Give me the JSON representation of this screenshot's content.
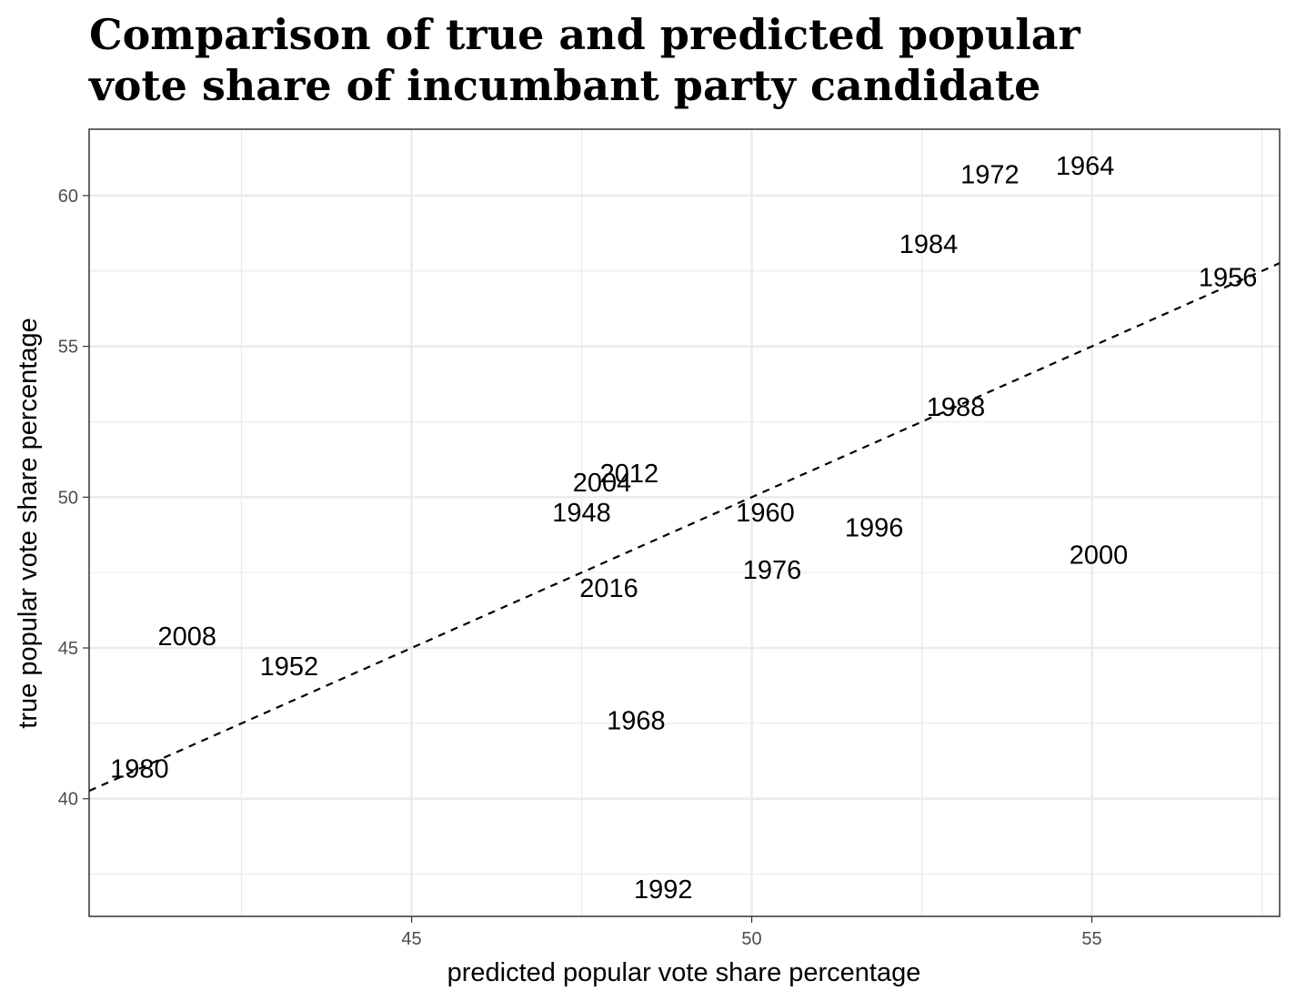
{
  "chart_data": {
    "type": "scatter",
    "title": "Comparison of true and predicted popular vote share of incumbant party candidate",
    "title_lines": [
      "Comparison of true and predicted popular",
      "vote share of incumbant party candidate"
    ],
    "xlabel": "predicted popular vote share percentage",
    "ylabel": "true popular vote share percentage",
    "xlim": [
      40.26,
      57.76
    ],
    "ylim": [
      36.1,
      62.2
    ],
    "x_ticks": [
      45,
      50,
      55
    ],
    "y_ticks": [
      40,
      45,
      50,
      55,
      60
    ],
    "x_tick_labels": [
      "45",
      "50",
      "55"
    ],
    "y_tick_labels": [
      "40",
      "45",
      "50",
      "55",
      "60"
    ],
    "grid": true,
    "reference_line": {
      "style": "dashed",
      "slope": 1,
      "intercept": 0
    },
    "points": [
      {
        "label": "1980",
        "x": 41.0,
        "y": 41.0
      },
      {
        "label": "2008",
        "x": 41.7,
        "y": 45.4
      },
      {
        "label": "1952",
        "x": 43.2,
        "y": 44.4
      },
      {
        "label": "1948",
        "x": 47.5,
        "y": 49.5
      },
      {
        "label": "2004",
        "x": 47.8,
        "y": 50.5
      },
      {
        "label": "2012",
        "x": 48.2,
        "y": 50.8
      },
      {
        "label": "2016",
        "x": 47.9,
        "y": 47.0
      },
      {
        "label": "1968",
        "x": 48.3,
        "y": 42.6
      },
      {
        "label": "1992",
        "x": 48.7,
        "y": 37.0
      },
      {
        "label": "1960",
        "x": 50.2,
        "y": 49.5
      },
      {
        "label": "1976",
        "x": 50.3,
        "y": 47.6
      },
      {
        "label": "1996",
        "x": 51.8,
        "y": 49.0
      },
      {
        "label": "1984",
        "x": 52.6,
        "y": 58.4
      },
      {
        "label": "1988",
        "x": 53.0,
        "y": 53.0
      },
      {
        "label": "1972",
        "x": 53.5,
        "y": 60.7
      },
      {
        "label": "1964",
        "x": 54.9,
        "y": 61.0
      },
      {
        "label": "2000",
        "x": 55.1,
        "y": 48.1
      },
      {
        "label": "1956",
        "x": 57.0,
        "y": 57.3
      }
    ]
  }
}
